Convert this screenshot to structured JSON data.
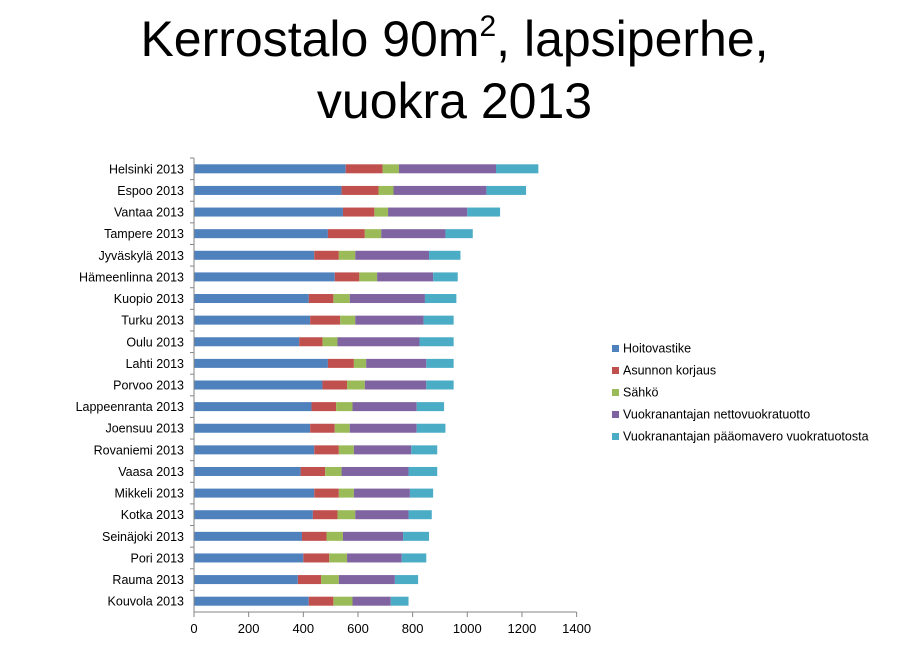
{
  "title": {
    "line1_pre": "Kerrostalo 90m",
    "line1_sup": "2",
    "line1_post": ", lapsiperhe,",
    "line2": "vuokra 2013"
  },
  "chart_data": {
    "type": "bar",
    "orientation": "horizontal",
    "stacked": true,
    "title": "Kerrostalo 90m², lapsiperhe, vuokra 2013",
    "xlim": [
      0,
      1400
    ],
    "xticks": [
      0,
      200,
      400,
      600,
      800,
      1000,
      1200,
      1400
    ],
    "legend_position": "right",
    "categories": [
      "Helsinki 2013",
      "Espoo 2013",
      "Vantaa 2013",
      "Tampere 2013",
      "Jyväskylä 2013",
      "Hämeenlinna 2013",
      "Kuopio 2013",
      "Turku 2013",
      "Oulu 2013",
      "Lahti 2013",
      "Porvoo 2013",
      "Lappeenranta 2013",
      "Joensuu 2013",
      "Rovaniemi 2013",
      "Vaasa 2013",
      "Mikkeli 2013",
      "Kotka 2013",
      "Seinäjoki 2013",
      "Pori 2013",
      "Rauma 2013",
      "Kouvola 2013"
    ],
    "series": [
      {
        "name": "Hoitovastike",
        "color": "#4F81BD",
        "values": [
          555,
          540,
          545,
          490,
          440,
          515,
          420,
          425,
          385,
          490,
          470,
          430,
          425,
          440,
          390,
          440,
          435,
          395,
          400,
          380,
          420
        ]
      },
      {
        "name": "Asunnon korjaus",
        "color": "#C0504D",
        "values": [
          135,
          135,
          115,
          135,
          90,
          90,
          90,
          110,
          85,
          95,
          90,
          90,
          90,
          90,
          90,
          90,
          90,
          90,
          95,
          85,
          90
        ]
      },
      {
        "name": "Sähkö",
        "color": "#9BBB59",
        "values": [
          60,
          55,
          50,
          60,
          60,
          65,
          60,
          55,
          55,
          45,
          65,
          60,
          55,
          55,
          60,
          55,
          65,
          60,
          65,
          65,
          70
        ]
      },
      {
        "name": "Vuokranantajan nettovuokratuotto",
        "color": "#8064A2",
        "values": [
          355,
          340,
          290,
          235,
          270,
          205,
          275,
          250,
          300,
          220,
          225,
          235,
          245,
          210,
          245,
          205,
          195,
          220,
          200,
          205,
          140
        ]
      },
      {
        "name": "Vuokranantajan pääomavero vuokratuotosta",
        "color": "#4BACC6",
        "values": [
          155,
          145,
          120,
          100,
          115,
          90,
          115,
          110,
          125,
          100,
          100,
          100,
          105,
          95,
          105,
          85,
          85,
          95,
          90,
          85,
          65
        ]
      }
    ]
  }
}
